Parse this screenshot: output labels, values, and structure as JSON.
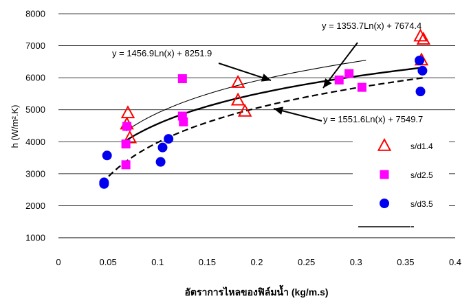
{
  "chart_data": {
    "type": "scatter",
    "title": "",
    "xlabel": "อัตราการไหลของฟิล์มน้ำ (kg/m.s)",
    "ylabel": "h (W/m².K)",
    "xlim": [
      0,
      0.4
    ],
    "ylim": [
      1000,
      8000
    ],
    "x_ticks": [
      "0",
      "0.05",
      "0.1",
      "0.15",
      "0.2",
      "0.25",
      "0.3",
      "0.35",
      "0.4"
    ],
    "y_ticks": [
      "1000",
      "2000",
      "3000",
      "4000",
      "5000",
      "6000",
      "7000",
      "8000"
    ],
    "grid": "horizontal",
    "legend_position": "right",
    "series": [
      {
        "name": "s/d1.4",
        "marker": "triangle-open",
        "color": "#ff0000",
        "points": [
          [
            0.07,
            4900
          ],
          [
            0.069,
            4550
          ],
          [
            0.072,
            4120
          ],
          [
            0.181,
            5850
          ],
          [
            0.181,
            5300
          ],
          [
            0.188,
            4950
          ],
          [
            0.365,
            7300
          ],
          [
            0.368,
            7200
          ],
          [
            0.366,
            6550
          ]
        ]
      },
      {
        "name": "s/d2.5",
        "marker": "square",
        "color": "#ff00ff",
        "points": [
          [
            0.068,
            3930
          ],
          [
            0.068,
            3280
          ],
          [
            0.069,
            4480
          ],
          [
            0.125,
            5970
          ],
          [
            0.125,
            4800
          ],
          [
            0.126,
            4620
          ],
          [
            0.283,
            5930
          ],
          [
            0.293,
            6130
          ],
          [
            0.306,
            5700
          ]
        ]
      },
      {
        "name": "s/d3.5",
        "marker": "circle",
        "color": "#0000ee",
        "points": [
          [
            0.046,
            2730
          ],
          [
            0.046,
            2680
          ],
          [
            0.049,
            3570
          ],
          [
            0.103,
            3370
          ],
          [
            0.105,
            3820
          ],
          [
            0.111,
            4090
          ],
          [
            0.364,
            6540
          ],
          [
            0.367,
            6220
          ],
          [
            0.365,
            5570
          ]
        ]
      }
    ],
    "trendlines": [
      {
        "label": "y = 1353.7Ln(x) + 7674.4",
        "a": 1353.7,
        "b": 7674.4,
        "x_range": [
          0.068,
          0.37
        ],
        "style": "solid-thick"
      },
      {
        "label": "y = 1456.9Ln(x) + 8251.9",
        "a": 1456.9,
        "b": 8251.9,
        "x_range": [
          0.068,
          0.31
        ],
        "style": "solid-thin"
      },
      {
        "label": "y = 1551.6Ln(x) + 7549.7",
        "a": 1551.6,
        "b": 7549.7,
        "x_range": [
          0.044,
          0.37
        ],
        "style": "dashed"
      }
    ]
  }
}
